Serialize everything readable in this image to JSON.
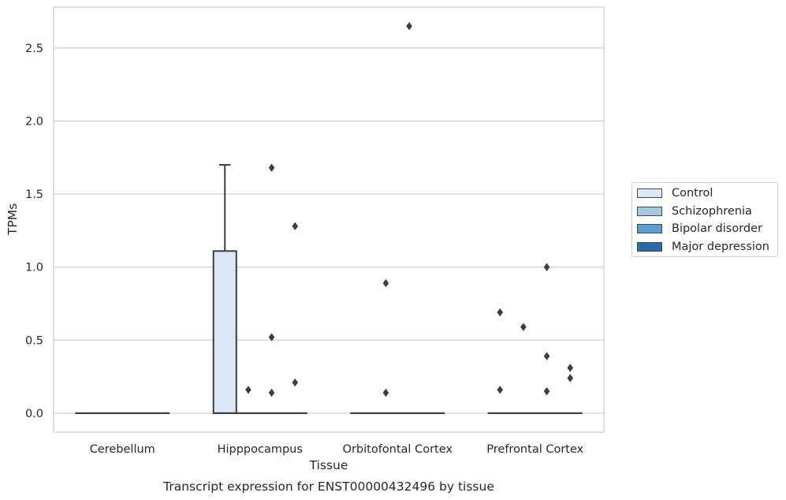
{
  "chart_data": {
    "type": "box",
    "title": "Transcript expression for ENST00000432496 by tissue",
    "xlabel": "Tissue",
    "ylabel": "TPMs",
    "ylim": [
      -0.13,
      2.78
    ],
    "yticks": [
      0.0,
      0.5,
      1.0,
      1.5,
      2.0,
      2.5
    ],
    "ytick_labels": [
      "0.0",
      "0.5",
      "1.0",
      "1.5",
      "2.0",
      "2.5"
    ],
    "categories": [
      "Cerebellum",
      "Hipppocampus",
      "Orbitofontal Cortex",
      "Prefrontal Cortex"
    ],
    "grid": true,
    "legend_position": "right",
    "series": [
      {
        "name": "Control",
        "color": "#dbe9f6",
        "boxes": [
          {
            "category": "Cerebellum",
            "q1": 0,
            "median": 0,
            "q3": 0,
            "whisker_low": 0,
            "whisker_high": 0,
            "outliers": []
          },
          {
            "category": "Hipppocampus",
            "q1": 0,
            "median": 0,
            "q3": 1.11,
            "whisker_low": 0,
            "whisker_high": 1.7,
            "outliers": []
          },
          {
            "category": "Orbitofontal Cortex",
            "q1": 0,
            "median": 0,
            "q3": 0,
            "whisker_low": 0,
            "whisker_high": 0,
            "outliers": []
          },
          {
            "category": "Prefrontal Cortex",
            "q1": 0,
            "median": 0,
            "q3": 0,
            "whisker_low": 0,
            "whisker_high": 0,
            "outliers": [
              0.16,
              0.69
            ]
          }
        ]
      },
      {
        "name": "Schizophrenia",
        "color": "#a3c9e0",
        "boxes": [
          {
            "category": "Cerebellum",
            "q1": 0,
            "median": 0,
            "q3": 0,
            "whisker_low": 0,
            "whisker_high": 0,
            "outliers": []
          },
          {
            "category": "Hipppocampus",
            "q1": 0,
            "median": 0,
            "q3": 0,
            "whisker_low": 0,
            "whisker_high": 0,
            "outliers": [
              0.16
            ]
          },
          {
            "category": "Orbitofontal Cortex",
            "q1": 0,
            "median": 0,
            "q3": 0,
            "whisker_low": 0,
            "whisker_high": 0,
            "outliers": [
              0.14,
              0.89
            ]
          },
          {
            "category": "Prefrontal Cortex",
            "q1": 0,
            "median": 0,
            "q3": 0,
            "whisker_low": 0,
            "whisker_high": 0,
            "outliers": [
              0.59
            ]
          }
        ]
      },
      {
        "name": "Bipolar disorder",
        "color": "#5a9fcd",
        "boxes": [
          {
            "category": "Cerebellum",
            "q1": 0,
            "median": 0,
            "q3": 0,
            "whisker_low": 0,
            "whisker_high": 0,
            "outliers": []
          },
          {
            "category": "Hipppocampus",
            "q1": 0,
            "median": 0,
            "q3": 0,
            "whisker_low": 0,
            "whisker_high": 0,
            "outliers": [
              0.14,
              0.52,
              1.68
            ]
          },
          {
            "category": "Orbitofontal Cortex",
            "q1": 0,
            "median": 0,
            "q3": 0,
            "whisker_low": 0,
            "whisker_high": 0,
            "outliers": [
              2.65
            ]
          },
          {
            "category": "Prefrontal Cortex",
            "q1": 0,
            "median": 0,
            "q3": 0,
            "whisker_low": 0,
            "whisker_high": 0,
            "outliers": [
              0.15,
              0.39,
              1.0
            ]
          }
        ]
      },
      {
        "name": "Major depression",
        "color": "#2b6ba8",
        "boxes": [
          {
            "category": "Cerebellum",
            "q1": 0,
            "median": 0,
            "q3": 0,
            "whisker_low": 0,
            "whisker_high": 0,
            "outliers": []
          },
          {
            "category": "Hipppocampus",
            "q1": 0,
            "median": 0,
            "q3": 0,
            "whisker_low": 0,
            "whisker_high": 0,
            "outliers": [
              0.21,
              1.28
            ]
          },
          {
            "category": "Orbitofontal Cortex",
            "q1": 0,
            "median": 0,
            "q3": 0,
            "whisker_low": 0,
            "whisker_high": 0,
            "outliers": []
          },
          {
            "category": "Prefrontal Cortex",
            "q1": 0,
            "median": 0,
            "q3": 0,
            "whisker_low": 0,
            "whisker_high": 0,
            "outliers": [
              0.24,
              0.31
            ]
          }
        ]
      }
    ]
  }
}
